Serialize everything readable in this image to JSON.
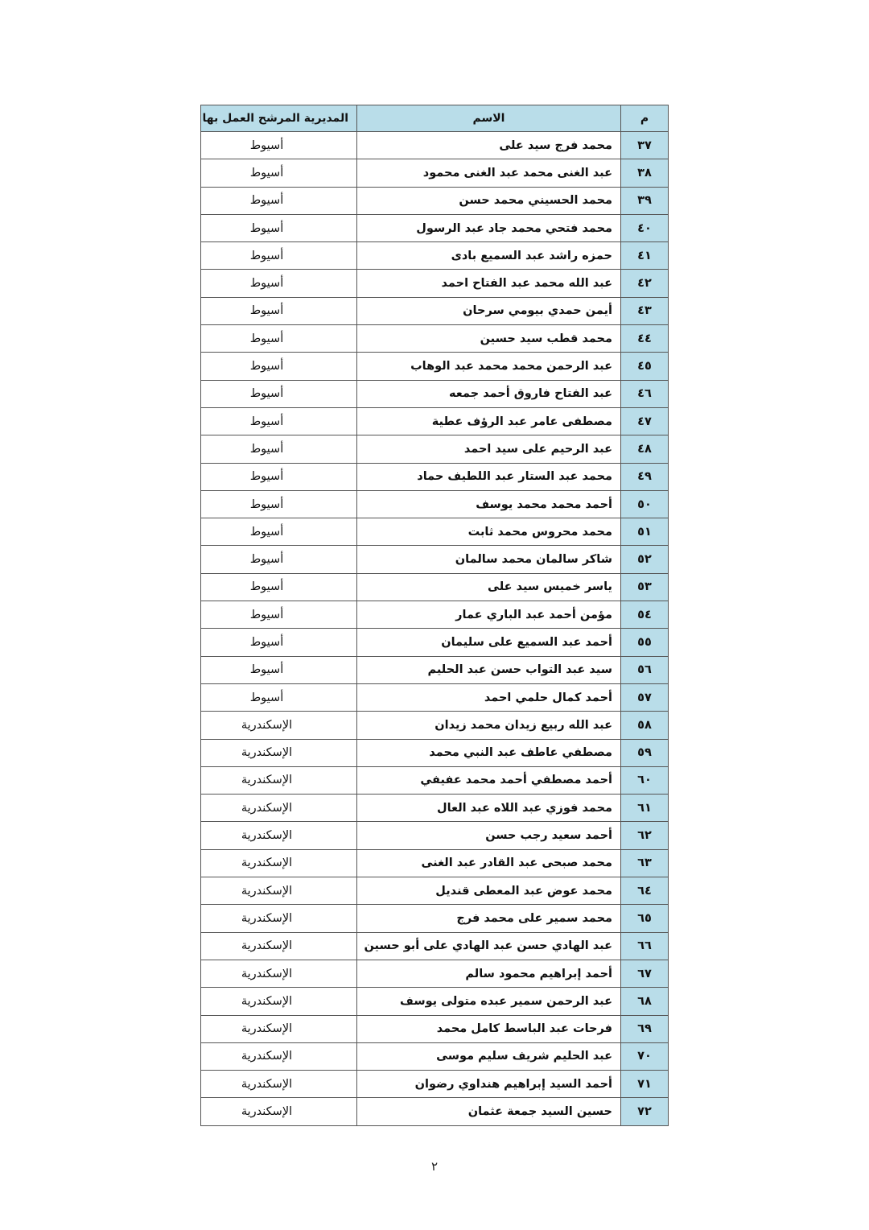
{
  "table": {
    "headers": {
      "num": "م",
      "name": "الاسم",
      "directorate": "المديرية المرشح العمل بها"
    },
    "rows": [
      {
        "num": "٣٧",
        "name": "محمد فرج سيد على",
        "directorate": "أسيوط"
      },
      {
        "num": "٣٨",
        "name": "عبد الغنى محمد عبد الغنى محمود",
        "directorate": "أسيوط"
      },
      {
        "num": "٣٩",
        "name": "محمد الحسيني محمد حسن",
        "directorate": "أسيوط"
      },
      {
        "num": "٤٠",
        "name": "محمد فتحي محمد جاد عبد الرسول",
        "directorate": "أسيوط"
      },
      {
        "num": "٤١",
        "name": "حمزه راشد عبد السميع بادى",
        "directorate": "أسيوط"
      },
      {
        "num": "٤٢",
        "name": "عبد الله محمد عبد الفتاح احمد",
        "directorate": "أسيوط"
      },
      {
        "num": "٤٣",
        "name": "أيمن حمدي بيومي سرحان",
        "directorate": "أسيوط"
      },
      {
        "num": "٤٤",
        "name": "محمد قطب سيد حسين",
        "directorate": "أسيوط"
      },
      {
        "num": "٤٥",
        "name": "عبد الرحمن محمد محمد عبد الوهاب",
        "directorate": "أسيوط"
      },
      {
        "num": "٤٦",
        "name": "عبد الفتاح فاروق أحمد جمعه",
        "directorate": "أسيوط"
      },
      {
        "num": "٤٧",
        "name": "مصطفى عامر عبد الرؤف عطية",
        "directorate": "أسيوط"
      },
      {
        "num": "٤٨",
        "name": "عبد الرحيم على سيد احمد",
        "directorate": "أسيوط"
      },
      {
        "num": "٤٩",
        "name": "محمد عبد الستار عبد اللطيف حماد",
        "directorate": "أسيوط"
      },
      {
        "num": "٥٠",
        "name": "أحمد محمد محمد يوسف",
        "directorate": "أسيوط"
      },
      {
        "num": "٥١",
        "name": "محمد محروس محمد ثابت",
        "directorate": "أسيوط"
      },
      {
        "num": "٥٢",
        "name": "شاكر سالمان محمد سالمان",
        "directorate": "أسيوط"
      },
      {
        "num": "٥٣",
        "name": "ياسر خميس سيد على",
        "directorate": "أسيوط"
      },
      {
        "num": "٥٤",
        "name": "مؤمن أحمد عبد الباري عمار",
        "directorate": "أسيوط"
      },
      {
        "num": "٥٥",
        "name": "أحمد عبد السميع على سليمان",
        "directorate": "أسيوط"
      },
      {
        "num": "٥٦",
        "name": "سيد عبد التواب حسن عبد الحليم",
        "directorate": "أسيوط"
      },
      {
        "num": "٥٧",
        "name": "أحمد كمال حلمي احمد",
        "directorate": "أسيوط"
      },
      {
        "num": "٥٨",
        "name": "عبد الله ربيع زيدان محمد زيدان",
        "directorate": "الإسكندرية"
      },
      {
        "num": "٥٩",
        "name": "مصطفي عاطف عبد النبي محمد",
        "directorate": "الإسكندرية"
      },
      {
        "num": "٦٠",
        "name": "أحمد مصطفي أحمد محمد عفيفي",
        "directorate": "الإسكندرية"
      },
      {
        "num": "٦١",
        "name": "محمد فوزي عبد اللاه عبد العال",
        "directorate": "الإسكندرية"
      },
      {
        "num": "٦٢",
        "name": "أحمد سعيد رجب حسن",
        "directorate": "الإسكندرية"
      },
      {
        "num": "٦٣",
        "name": "محمد صبحى عبد القادر عبد الغنى",
        "directorate": "الإسكندرية"
      },
      {
        "num": "٦٤",
        "name": "محمد عوض عبد المعطى قنديل",
        "directorate": "الإسكندرية"
      },
      {
        "num": "٦٥",
        "name": "محمد سمير على محمد فرج",
        "directorate": "الإسكندرية"
      },
      {
        "num": "٦٦",
        "name": "عبد الهادي حسن عبد الهادي على أبو حسين",
        "directorate": "الإسكندرية"
      },
      {
        "num": "٦٧",
        "name": "أحمد إبراهيم محمود سالم",
        "directorate": "الإسكندرية"
      },
      {
        "num": "٦٨",
        "name": "عبد الرحمن سمير عبده متولى يوسف",
        "directorate": "الإسكندرية"
      },
      {
        "num": "٦٩",
        "name": "فرحات عبد الباسط كامل محمد",
        "directorate": "الإسكندرية"
      },
      {
        "num": "٧٠",
        "name": "عبد الحليم شريف سليم موسى",
        "directorate": "الإسكندرية"
      },
      {
        "num": "٧١",
        "name": "أحمد السيد إبراهيم هنداوي رضوان",
        "directorate": "الإسكندرية"
      },
      {
        "num": "٧٢",
        "name": "حسين السيد جمعة عثمان",
        "directorate": "الإسكندرية"
      }
    ]
  },
  "page_number": "٢",
  "colors": {
    "header_bg": "#b9dde9",
    "border": "#555555"
  }
}
